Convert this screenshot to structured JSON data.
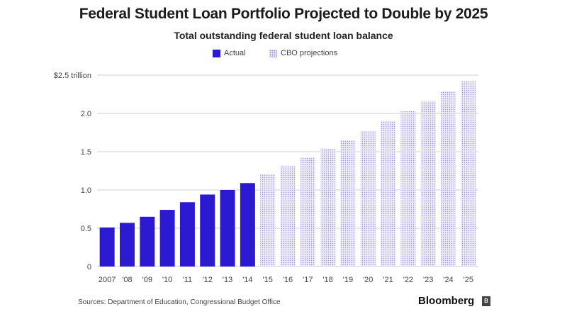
{
  "title": "Federal Student Loan Portfolio Projected to Double by 2025",
  "subtitle": "Total outstanding federal student loan balance",
  "legend": {
    "actual": "Actual",
    "projected": "CBO projections"
  },
  "source": "Sources: Department of Education, Congressional Budget Office",
  "brand": "Bloomberg",
  "colors": {
    "actual": "#2b1ad1",
    "projected_fill": "#eceaf8",
    "projected_dots": "#9a94d8",
    "grid": "#cfcfcf"
  },
  "chart_data": {
    "type": "bar",
    "title": "Federal Student Loan Portfolio Projected to Double by 2025",
    "subtitle": "Total outstanding federal student loan balance",
    "xlabel": "",
    "ylabel": "",
    "ylim": [
      0,
      2.5
    ],
    "grid": true,
    "legend_position": "top",
    "y_ticks": [
      "0",
      "0.5",
      "1.0",
      "1.5",
      "2.0",
      "$2.5 trillion"
    ],
    "y_tick_values": [
      0,
      0.5,
      1.0,
      1.5,
      2.0,
      2.5
    ],
    "categories": [
      "2007",
      "'08",
      "'09",
      "'10",
      "'11",
      "'12",
      "'13",
      "'14",
      "'15",
      "'16",
      "'17",
      "'18",
      "'19",
      "'20",
      "'21",
      "'22",
      "'23",
      "'24",
      "'25"
    ],
    "series": [
      {
        "name": "Actual",
        "values": [
          0.51,
          0.57,
          0.65,
          0.74,
          0.84,
          0.94,
          1.0,
          1.09,
          null,
          null,
          null,
          null,
          null,
          null,
          null,
          null,
          null,
          null,
          null
        ]
      },
      {
        "name": "CBO projections",
        "values": [
          null,
          null,
          null,
          null,
          null,
          null,
          null,
          null,
          1.21,
          1.31,
          1.42,
          1.54,
          1.65,
          1.77,
          1.9,
          2.03,
          2.16,
          2.29,
          2.42
        ]
      }
    ]
  }
}
